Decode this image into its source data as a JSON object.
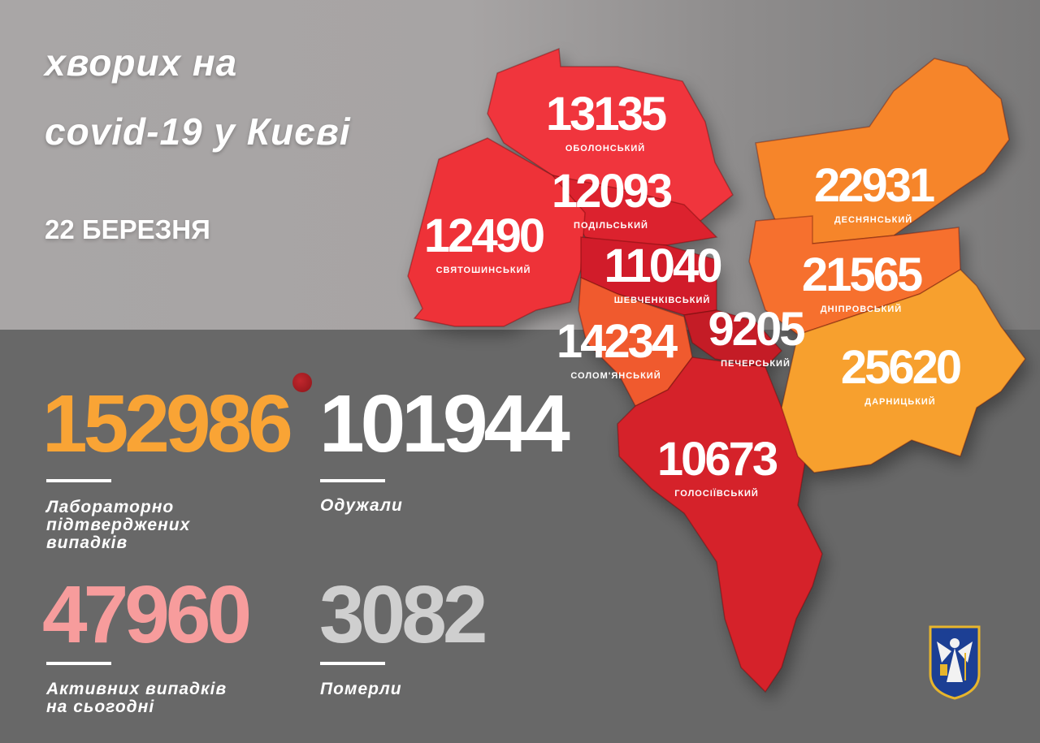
{
  "header": {
    "title_line1": "хворих на",
    "title_line2": "covid-19 у Києві",
    "date": "22 БЕРЕЗНЯ"
  },
  "stats": {
    "confirmed": {
      "value": "152986",
      "label_lines": [
        "Лабораторно",
        "підтверджених",
        "випадків"
      ],
      "color": "#f9a435"
    },
    "recovered": {
      "value": "101944",
      "label_lines": [
        "Одужали"
      ],
      "color": "#ffffff"
    },
    "active": {
      "value": "47960",
      "label_lines": [
        "Активних випадків",
        "на сьогодні"
      ],
      "color": "#f79c9c"
    },
    "deaths": {
      "value": "3082",
      "label_lines": [
        "Померли"
      ],
      "color": "#cfcfcf"
    }
  },
  "districts": [
    {
      "name": "ОБОЛОНСЬКИЙ",
      "value": "13135",
      "color": "#f0353c"
    },
    {
      "name": "ПОДІЛЬСЬКИЙ",
      "value": "12093",
      "color": "#dc222d"
    },
    {
      "name": "СВЯТОШИНСЬКИЙ",
      "value": "12490",
      "color": "#ee3138"
    },
    {
      "name": "ШЕВЧЕНКІВСЬКИЙ",
      "value": "11040",
      "color": "#d11e29"
    },
    {
      "name": "СОЛОМ'ЯНСЬКИЙ",
      "value": "14234",
      "color": "#f05a2e"
    },
    {
      "name": "ПЕЧЕРСЬКИЙ",
      "value": "9205",
      "color": "#c41c27"
    },
    {
      "name": "ГОЛОСІЇВСЬКИЙ",
      "value": "10673",
      "color": "#d5222a"
    },
    {
      "name": "ДЕСНЯНСЬКИЙ",
      "value": "22931",
      "color": "#f6852b"
    },
    {
      "name": "ДНІПРОВСЬКИЙ",
      "value": "21565",
      "color": "#f6702d"
    },
    {
      "name": "ДАРНИЦЬКИЙ",
      "value": "25620",
      "color": "#f7a02f"
    }
  ],
  "icons": {
    "virus": "virus-icon",
    "coat_of_arms": "kyiv-coat-of-arms"
  }
}
